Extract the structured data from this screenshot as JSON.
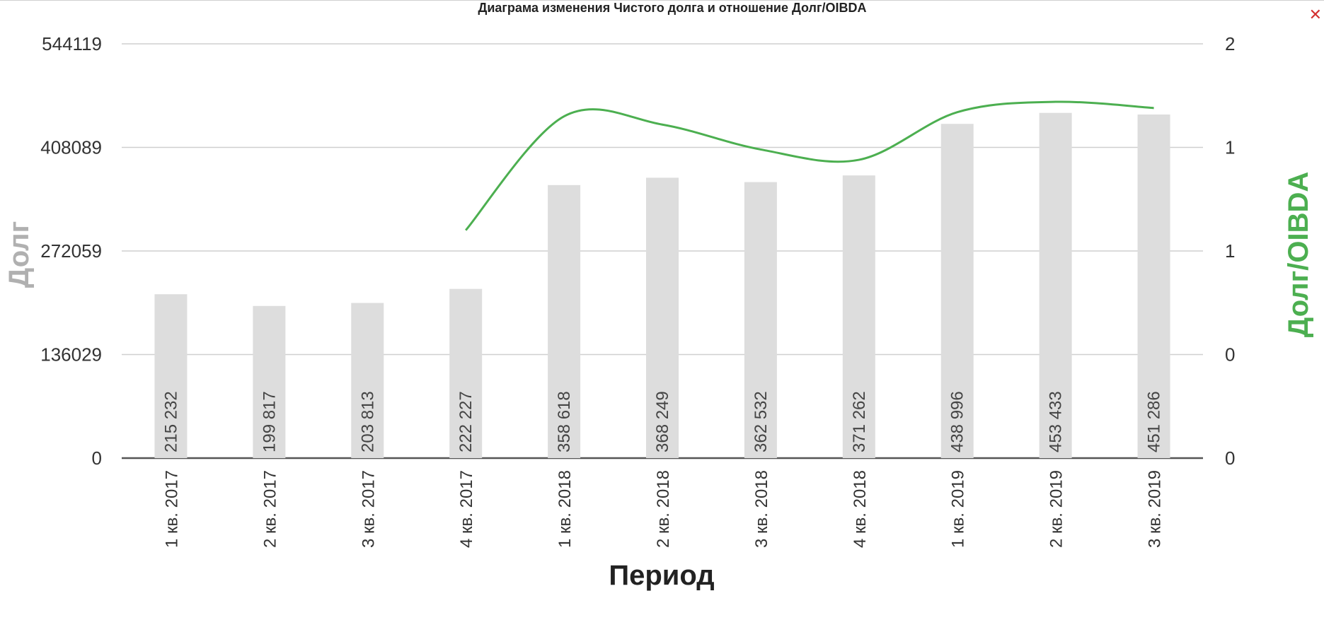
{
  "chart_data": {
    "type": "bar",
    "title": "Диаграма изменения Чистого долга и отношение Долг/OIBDA",
    "xlabel": "Период",
    "ylabel": "Долг",
    "y2label": "Долг/OIBDA",
    "categories": [
      "1 кв. 2017",
      "2 кв. 2017",
      "3 кв. 2017",
      "4 кв. 2017",
      "1 кв. 2018",
      "2 кв. 2018",
      "3 кв. 2018",
      "4 кв. 2018",
      "1 кв. 2019",
      "2 кв. 2019",
      "3 кв. 2019"
    ],
    "series": [
      {
        "name": "Долг",
        "type": "bar",
        "axis": "left",
        "color": "#dddddd",
        "values": [
          215232,
          199817,
          203813,
          222227,
          358618,
          368249,
          362532,
          371262,
          438996,
          453433,
          451286
        ],
        "labels": [
          "215 232",
          "199 817",
          "203 813",
          "222 227",
          "358 618",
          "368 249",
          "362 532",
          "371 262",
          "438 996",
          "453 433",
          "451 286"
        ]
      },
      {
        "name": "Долг/OIBDA",
        "type": "line",
        "axis": "right",
        "color": "#4caf50",
        "smooth": true,
        "values": [
          null,
          null,
          null,
          1.1,
          1.65,
          1.61,
          1.49,
          1.44,
          1.67,
          1.72,
          1.69
        ]
      }
    ],
    "ylim": [
      0,
      544119
    ],
    "y_ticks": [
      0,
      136029,
      272059,
      408089,
      544119
    ],
    "y2lim": [
      0,
      2
    ],
    "y2_ticks": [
      0,
      0.5,
      1,
      1.5,
      2
    ],
    "y2_tick_labels": [
      "0",
      "0",
      "1",
      "1",
      "2"
    ],
    "grid": true
  }
}
